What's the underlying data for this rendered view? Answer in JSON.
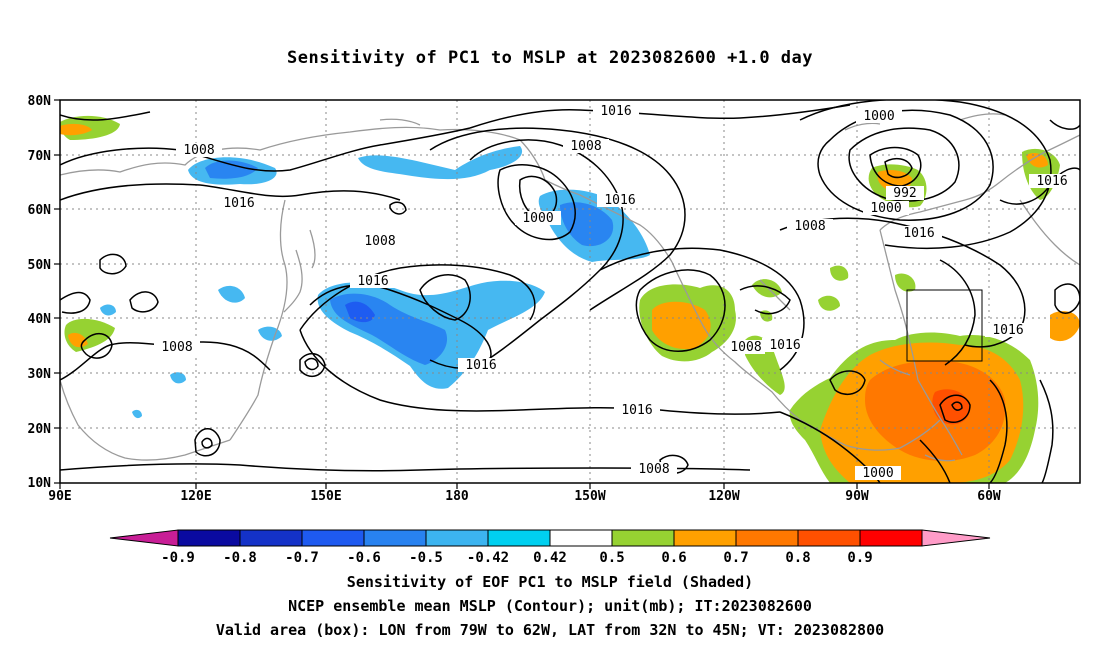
{
  "title": "Sensitivity of PC1 to MSLP at 2023082600 +1.0 day",
  "map": {
    "lat_labels": [
      "80N",
      "70N",
      "60N",
      "50N",
      "40N",
      "30N",
      "20N",
      "10N"
    ],
    "lon_labels": [
      "90E",
      "120E",
      "150E",
      "180",
      "150W",
      "120W",
      "90W",
      "60W"
    ],
    "contour_labels": [
      "1016",
      "1008",
      "1016",
      "1008",
      "1000",
      "1016",
      "1016",
      "1000",
      "992",
      "1000",
      "1016",
      "1008",
      "1016",
      "1016",
      "1016",
      "1008",
      "1016",
      "1016",
      "1008",
      "1008",
      "1008",
      "1000",
      "1016"
    ],
    "box": {
      "lon_range": "79W to 62W",
      "lat_range": "32N to 45N"
    }
  },
  "colorbar": {
    "labels": [
      "-0.9",
      "-0.8",
      "-0.7",
      "-0.6",
      "-0.5",
      "-0.42",
      "0.42",
      "0.5",
      "0.6",
      "0.7",
      "0.8",
      "0.9"
    ],
    "colors": [
      "#c81e96",
      "#0a0aa0",
      "#1432c8",
      "#1e5af0",
      "#2882f0",
      "#3cb4f0",
      "#00d0f0",
      "#ffffff",
      "#96d232",
      "#ffa000",
      "#ff7800",
      "#ff5000",
      "#ff0000",
      "#ff9cc8"
    ]
  },
  "captions": {
    "line1": "Sensitivity of EOF PC1 to MSLP field (Shaded)",
    "line2": "NCEP ensemble mean MSLP (Contour); unit(mb); IT:2023082600",
    "line3": "Valid area (box): LON from 79W to 62W, LAT from 32N to 45N; VT: 2023082800"
  }
}
